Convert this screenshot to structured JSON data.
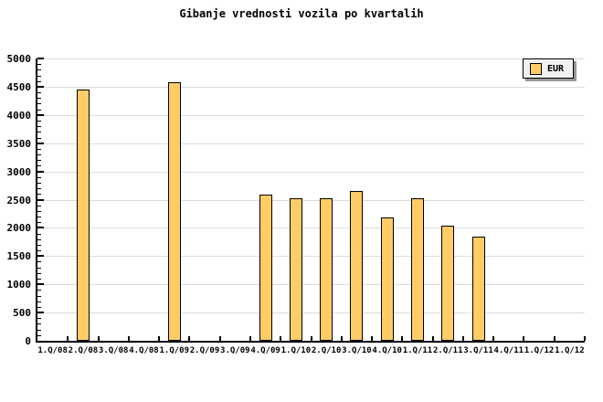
{
  "title": "Gibanje vrednosti vozila po kvartalih",
  "legend": {
    "label": "EUR",
    "swatch_color": "#FFCC66"
  },
  "colors": {
    "background": "#FFFFFF",
    "bar_fill": "#FFCC66",
    "bar_border": "#000000",
    "grid": "#DCDCDC",
    "axis": "#000000",
    "tick": "#000000",
    "legend_bg": "#F0F0F0",
    "legend_shadow": "#999999",
    "text": "#000000"
  },
  "chart_data": {
    "type": "bar",
    "title": "Gibanje vrednosti vozila po kvartalih",
    "categories": [
      "1.Q/08",
      "2.Q/08",
      "3.Q/08",
      "4.Q/08",
      "1.Q/09",
      "2.Q/09",
      "3.Q/09",
      "4.Q/09",
      "1.Q/10",
      "2.Q/10",
      "3.Q/10",
      "4.Q/10",
      "1.Q/11",
      "2.Q/11",
      "3.Q/11",
      "4.Q/11",
      "1.Q/12",
      "1.Q/12"
    ],
    "series": [
      {
        "name": "EUR",
        "values": [
          null,
          4445,
          null,
          null,
          4575,
          null,
          null,
          2595,
          2525,
          2525,
          2660,
          2180,
          2525,
          2035,
          1850,
          null,
          null,
          null
        ]
      }
    ],
    "xlabel": "",
    "ylabel": "",
    "ylim": [
      0,
      5000
    ],
    "ytick_interval": 500,
    "ytick_minor_interval": 100,
    "yticks": [
      "0",
      "500",
      "1000",
      "1500",
      "2000",
      "2500",
      "3000",
      "3500",
      "4000",
      "4500",
      "5000"
    ],
    "grid": true,
    "legend_position": "top-right"
  }
}
